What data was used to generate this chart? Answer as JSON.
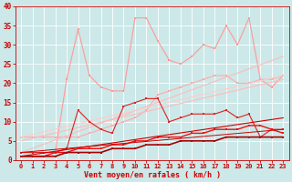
{
  "background_color": "#cce8e8",
  "grid_color": "#ffffff",
  "xlabel": "Vent moyen/en rafales ( km/h )",
  "xlabel_color": "#cc0000",
  "tick_color": "#cc0000",
  "xlim": [
    -0.5,
    23.5
  ],
  "ylim": [
    0,
    40
  ],
  "xticks": [
    0,
    1,
    2,
    3,
    4,
    5,
    6,
    7,
    8,
    9,
    10,
    11,
    12,
    13,
    14,
    15,
    16,
    17,
    18,
    19,
    20,
    21,
    22,
    23
  ],
  "yticks": [
    0,
    5,
    10,
    15,
    20,
    25,
    30,
    35,
    40
  ],
  "series": [
    {
      "label": "pink_jagged_high",
      "color": "#ff9999",
      "lw": 0.8,
      "marker": "s",
      "markersize": 1.8,
      "x": [
        0,
        1,
        2,
        3,
        4,
        5,
        6,
        7,
        8,
        9,
        10,
        11,
        12,
        13,
        14,
        15,
        16,
        17,
        18,
        19,
        20,
        21,
        22,
        23
      ],
      "y": [
        2,
        2,
        2,
        2,
        21,
        34,
        22,
        19,
        18,
        18,
        37,
        37,
        31,
        26,
        25,
        27,
        30,
        29,
        35,
        30,
        37,
        21,
        19,
        22
      ]
    },
    {
      "label": "pink_smooth_upper",
      "color": "#ffaaaa",
      "lw": 0.8,
      "marker": "s",
      "markersize": 1.8,
      "x": [
        0,
        1,
        2,
        3,
        4,
        5,
        6,
        7,
        8,
        9,
        10,
        11,
        12,
        13,
        14,
        15,
        16,
        17,
        18,
        19,
        20,
        21,
        22,
        23
      ],
      "y": [
        6,
        6,
        6,
        6,
        6,
        6,
        7,
        8,
        9,
        10,
        11,
        13,
        17,
        18,
        19,
        20,
        21,
        22,
        22,
        20,
        20,
        21,
        21,
        22
      ]
    },
    {
      "label": "pink_slope_upper",
      "color": "#ffbbbb",
      "lw": 0.8,
      "marker": null,
      "x": [
        0,
        23
      ],
      "y": [
        2,
        27
      ]
    },
    {
      "label": "pink_slope_lower",
      "color": "#ffbbbb",
      "lw": 0.8,
      "marker": null,
      "x": [
        0,
        23
      ],
      "y": [
        5,
        21
      ]
    },
    {
      "label": "pink_flat_band",
      "color": "#ffcccc",
      "lw": 0.8,
      "marker": null,
      "x": [
        0,
        23
      ],
      "y": [
        6,
        22
      ]
    },
    {
      "label": "red_jagged_mid",
      "color": "#dd2222",
      "lw": 0.8,
      "marker": "s",
      "markersize": 1.8,
      "x": [
        0,
        1,
        2,
        3,
        4,
        5,
        6,
        7,
        8,
        9,
        10,
        11,
        12,
        13,
        14,
        15,
        16,
        17,
        18,
        19,
        20,
        21,
        22,
        23
      ],
      "y": [
        2,
        2,
        2,
        2,
        3,
        13,
        10,
        8,
        7,
        14,
        15,
        16,
        16,
        10,
        11,
        12,
        12,
        12,
        13,
        11,
        12,
        6,
        8,
        8
      ]
    },
    {
      "label": "red_diagonal",
      "color": "#cc0000",
      "lw": 0.8,
      "marker": null,
      "x": [
        0,
        23
      ],
      "y": [
        1,
        11
      ]
    },
    {
      "label": "red_bottom_smooth",
      "color": "#ee1111",
      "lw": 1.0,
      "marker": "s",
      "markersize": 1.5,
      "x": [
        0,
        1,
        2,
        3,
        4,
        5,
        6,
        7,
        8,
        9,
        10,
        11,
        12,
        13,
        14,
        15,
        16,
        17,
        18,
        19,
        20,
        21,
        22,
        23
      ],
      "y": [
        1,
        1,
        1,
        2,
        2,
        3,
        3,
        3,
        4,
        4,
        5,
        5,
        6,
        6,
        6,
        7,
        7,
        8,
        8,
        8,
        9,
        9,
        8,
        7
      ]
    },
    {
      "label": "red_slope2",
      "color": "#cc0000",
      "lw": 0.7,
      "marker": null,
      "x": [
        0,
        23
      ],
      "y": [
        2,
        8
      ]
    },
    {
      "label": "dark_red_base",
      "color": "#aa0000",
      "lw": 1.2,
      "marker": "s",
      "markersize": 1.5,
      "x": [
        0,
        1,
        2,
        3,
        4,
        5,
        6,
        7,
        8,
        9,
        10,
        11,
        12,
        13,
        14,
        15,
        16,
        17,
        18,
        19,
        20,
        21,
        22,
        23
      ],
      "y": [
        1,
        1,
        1,
        1,
        2,
        2,
        2,
        2,
        3,
        3,
        3,
        4,
        4,
        4,
        5,
        5,
        5,
        5,
        6,
        6,
        6,
        6,
        6,
        6
      ]
    }
  ]
}
